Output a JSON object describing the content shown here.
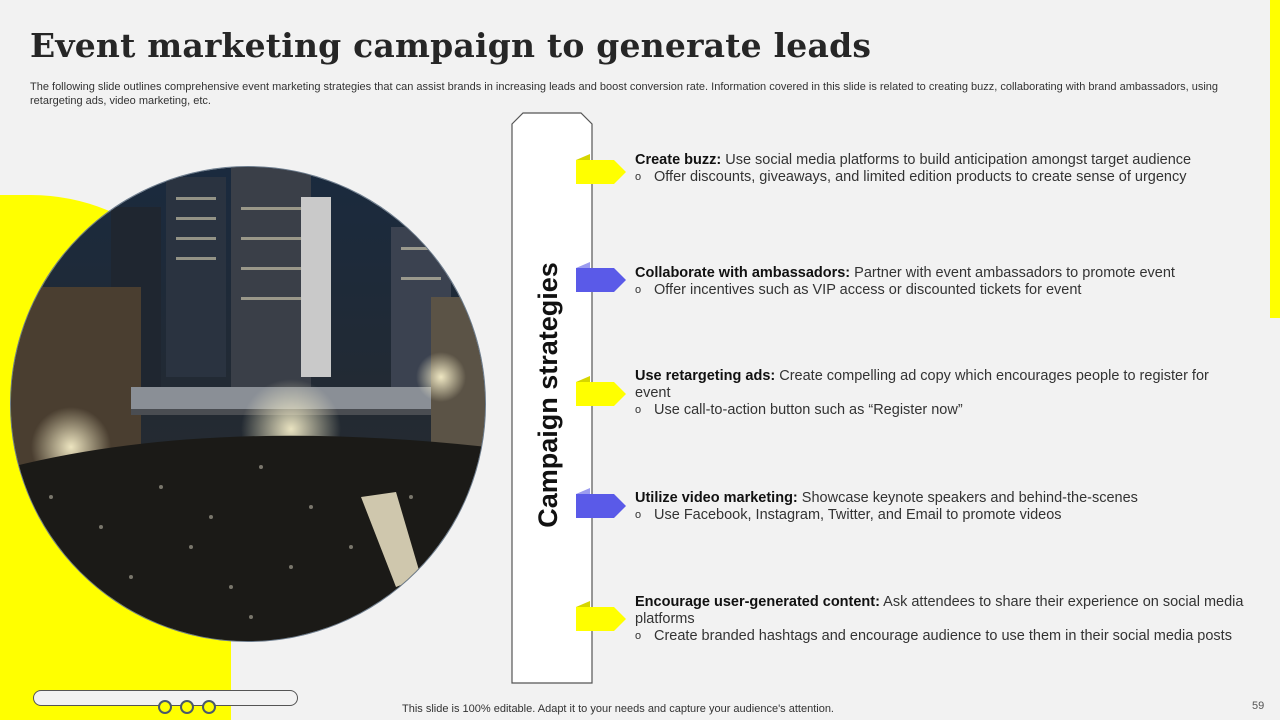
{
  "slide": {
    "title": "Event marketing campaign to generate leads",
    "subtitle": "The following slide outlines comprehensive event marketing strategies that can assist brands in increasing leads and boost conversion rate. Information covered in this slide is related to creating buzz,  collaborating with brand ambassadors, using retargeting ads, video marketing, etc.",
    "pillar_label": "Campaign strategies",
    "accent_color": "#ffff00",
    "secondary_color": "#5a5ae8",
    "items": [
      {
        "head": "Create buzz:",
        "text": " Use social media platforms to build anticipation amongst target audience",
        "bullet": "Offer discounts, giveaways, and limited edition products to create sense of urgency",
        "tag_color": "#ffff00"
      },
      {
        "head": "Collaborate with ambassadors:",
        "text": " Partner with event ambassadors to promote event",
        "bullet": "Offer incentives such as VIP  access or discounted tickets for event",
        "tag_color": "#5a5ae8"
      },
      {
        "head": "Use retargeting ads:",
        "text": " Create compelling ad copy which encourages people to register for event",
        "bullet": "Use call-to-action button such as “Register now”",
        "tag_color": "#ffff00"
      },
      {
        "head": "Utilize video marketing:",
        "text": " Showcase keynote speakers and behind-the-scenes",
        "bullet": "Use Facebook, Instagram, Twitter, and Email to promote videos",
        "tag_color": "#5a5ae8"
      },
      {
        "head": "Encourage user-generated content:",
        "text": " Ask attendees to share their experience on social media platforms",
        "bullet": "Create branded hashtags and encourage audience to use them in their social media posts",
        "tag_color": "#ffff00"
      }
    ],
    "bullet_mark": "o",
    "footer_text": "This slide is 100% editable. Adapt it to your needs and capture your audience's attention.",
    "page_number": "59"
  }
}
